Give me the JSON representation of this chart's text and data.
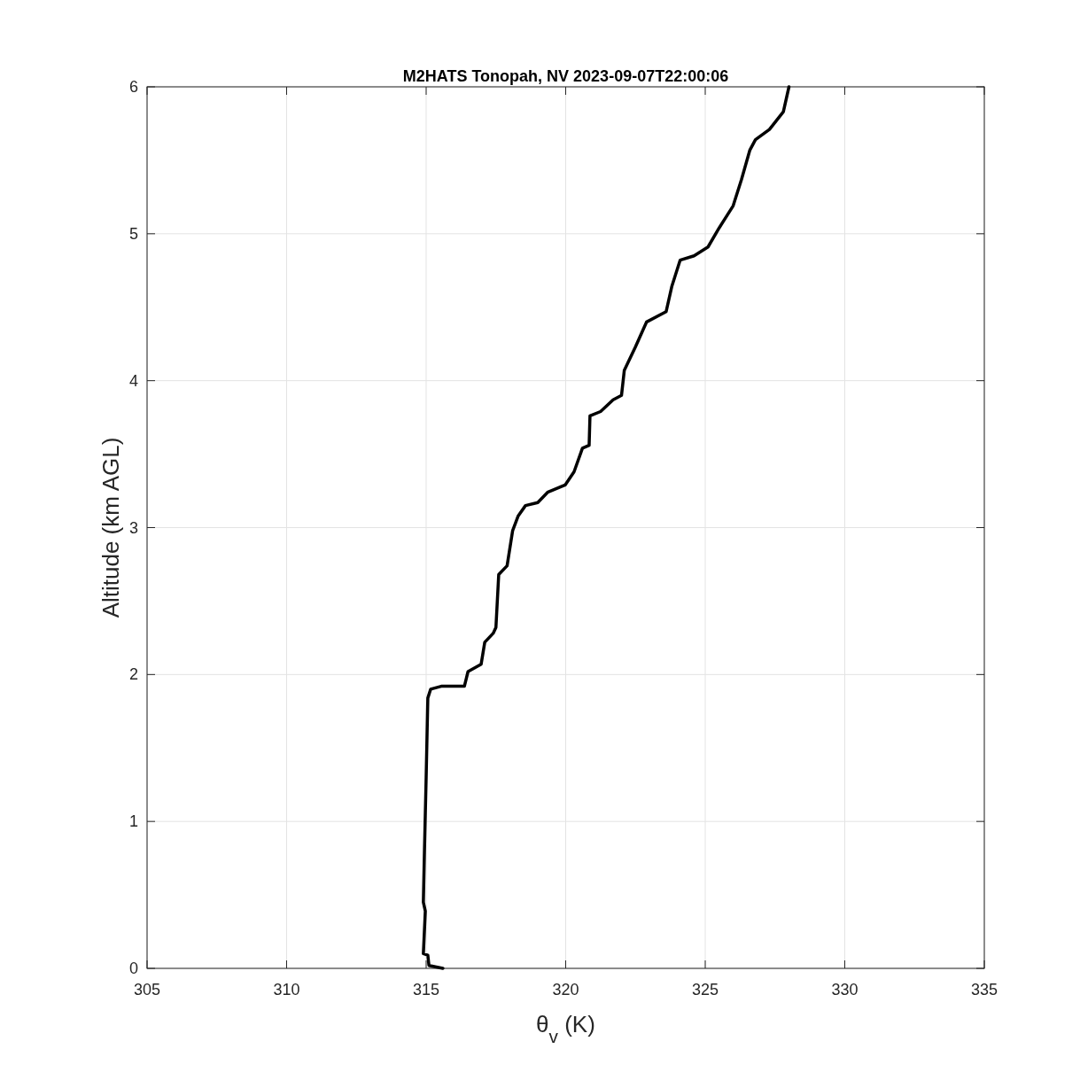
{
  "chart_data": {
    "type": "line",
    "title": "M2HATS Tonopah, NV 2023-09-07T22:00:06",
    "xlabel": "θ$_{v}$ (K)",
    "ylabel": "Altitude (km AGL)",
    "x": [
      315.6,
      315.1,
      315.06,
      314.9,
      314.97,
      314.9,
      314.94,
      315.0,
      315.06,
      315.16,
      315.54,
      316.37,
      316.5,
      316.97,
      317.1,
      317.4,
      317.5,
      317.6,
      317.9,
      318.1,
      318.3,
      318.56,
      319.0,
      319.35,
      319.98,
      320.3,
      320.6,
      320.84,
      320.87,
      321.25,
      321.7,
      322.0,
      322.1,
      322.5,
      322.9,
      323.6,
      323.8,
      324.1,
      324.6,
      325.1,
      325.5,
      326.0,
      326.3,
      326.6,
      326.8,
      327.3,
      327.8,
      328.0
    ],
    "series": [
      {
        "color": "#000000",
        "values": [
          0.0,
          0.02,
          0.09,
          0.1,
          0.39,
          0.45,
          0.81,
          1.3,
          1.84,
          1.9,
          1.92,
          1.92,
          2.02,
          2.07,
          2.22,
          2.28,
          2.32,
          2.68,
          2.74,
          2.98,
          3.08,
          3.15,
          3.17,
          3.24,
          3.29,
          3.38,
          3.54,
          3.56,
          3.76,
          3.79,
          3.87,
          3.9,
          4.07,
          4.23,
          4.4,
          4.47,
          4.64,
          4.82,
          4.85,
          4.91,
          5.04,
          5.19,
          5.37,
          5.57,
          5.64,
          5.71,
          5.83,
          6.0
        ]
      }
    ],
    "xlim": [
      305,
      335
    ],
    "xticks": [
      305,
      310,
      315,
      320,
      325,
      330,
      335
    ],
    "ylim": [
      0,
      6
    ],
    "yticks": [
      0,
      1,
      2,
      3,
      4,
      5,
      6
    ],
    "grid": true
  }
}
